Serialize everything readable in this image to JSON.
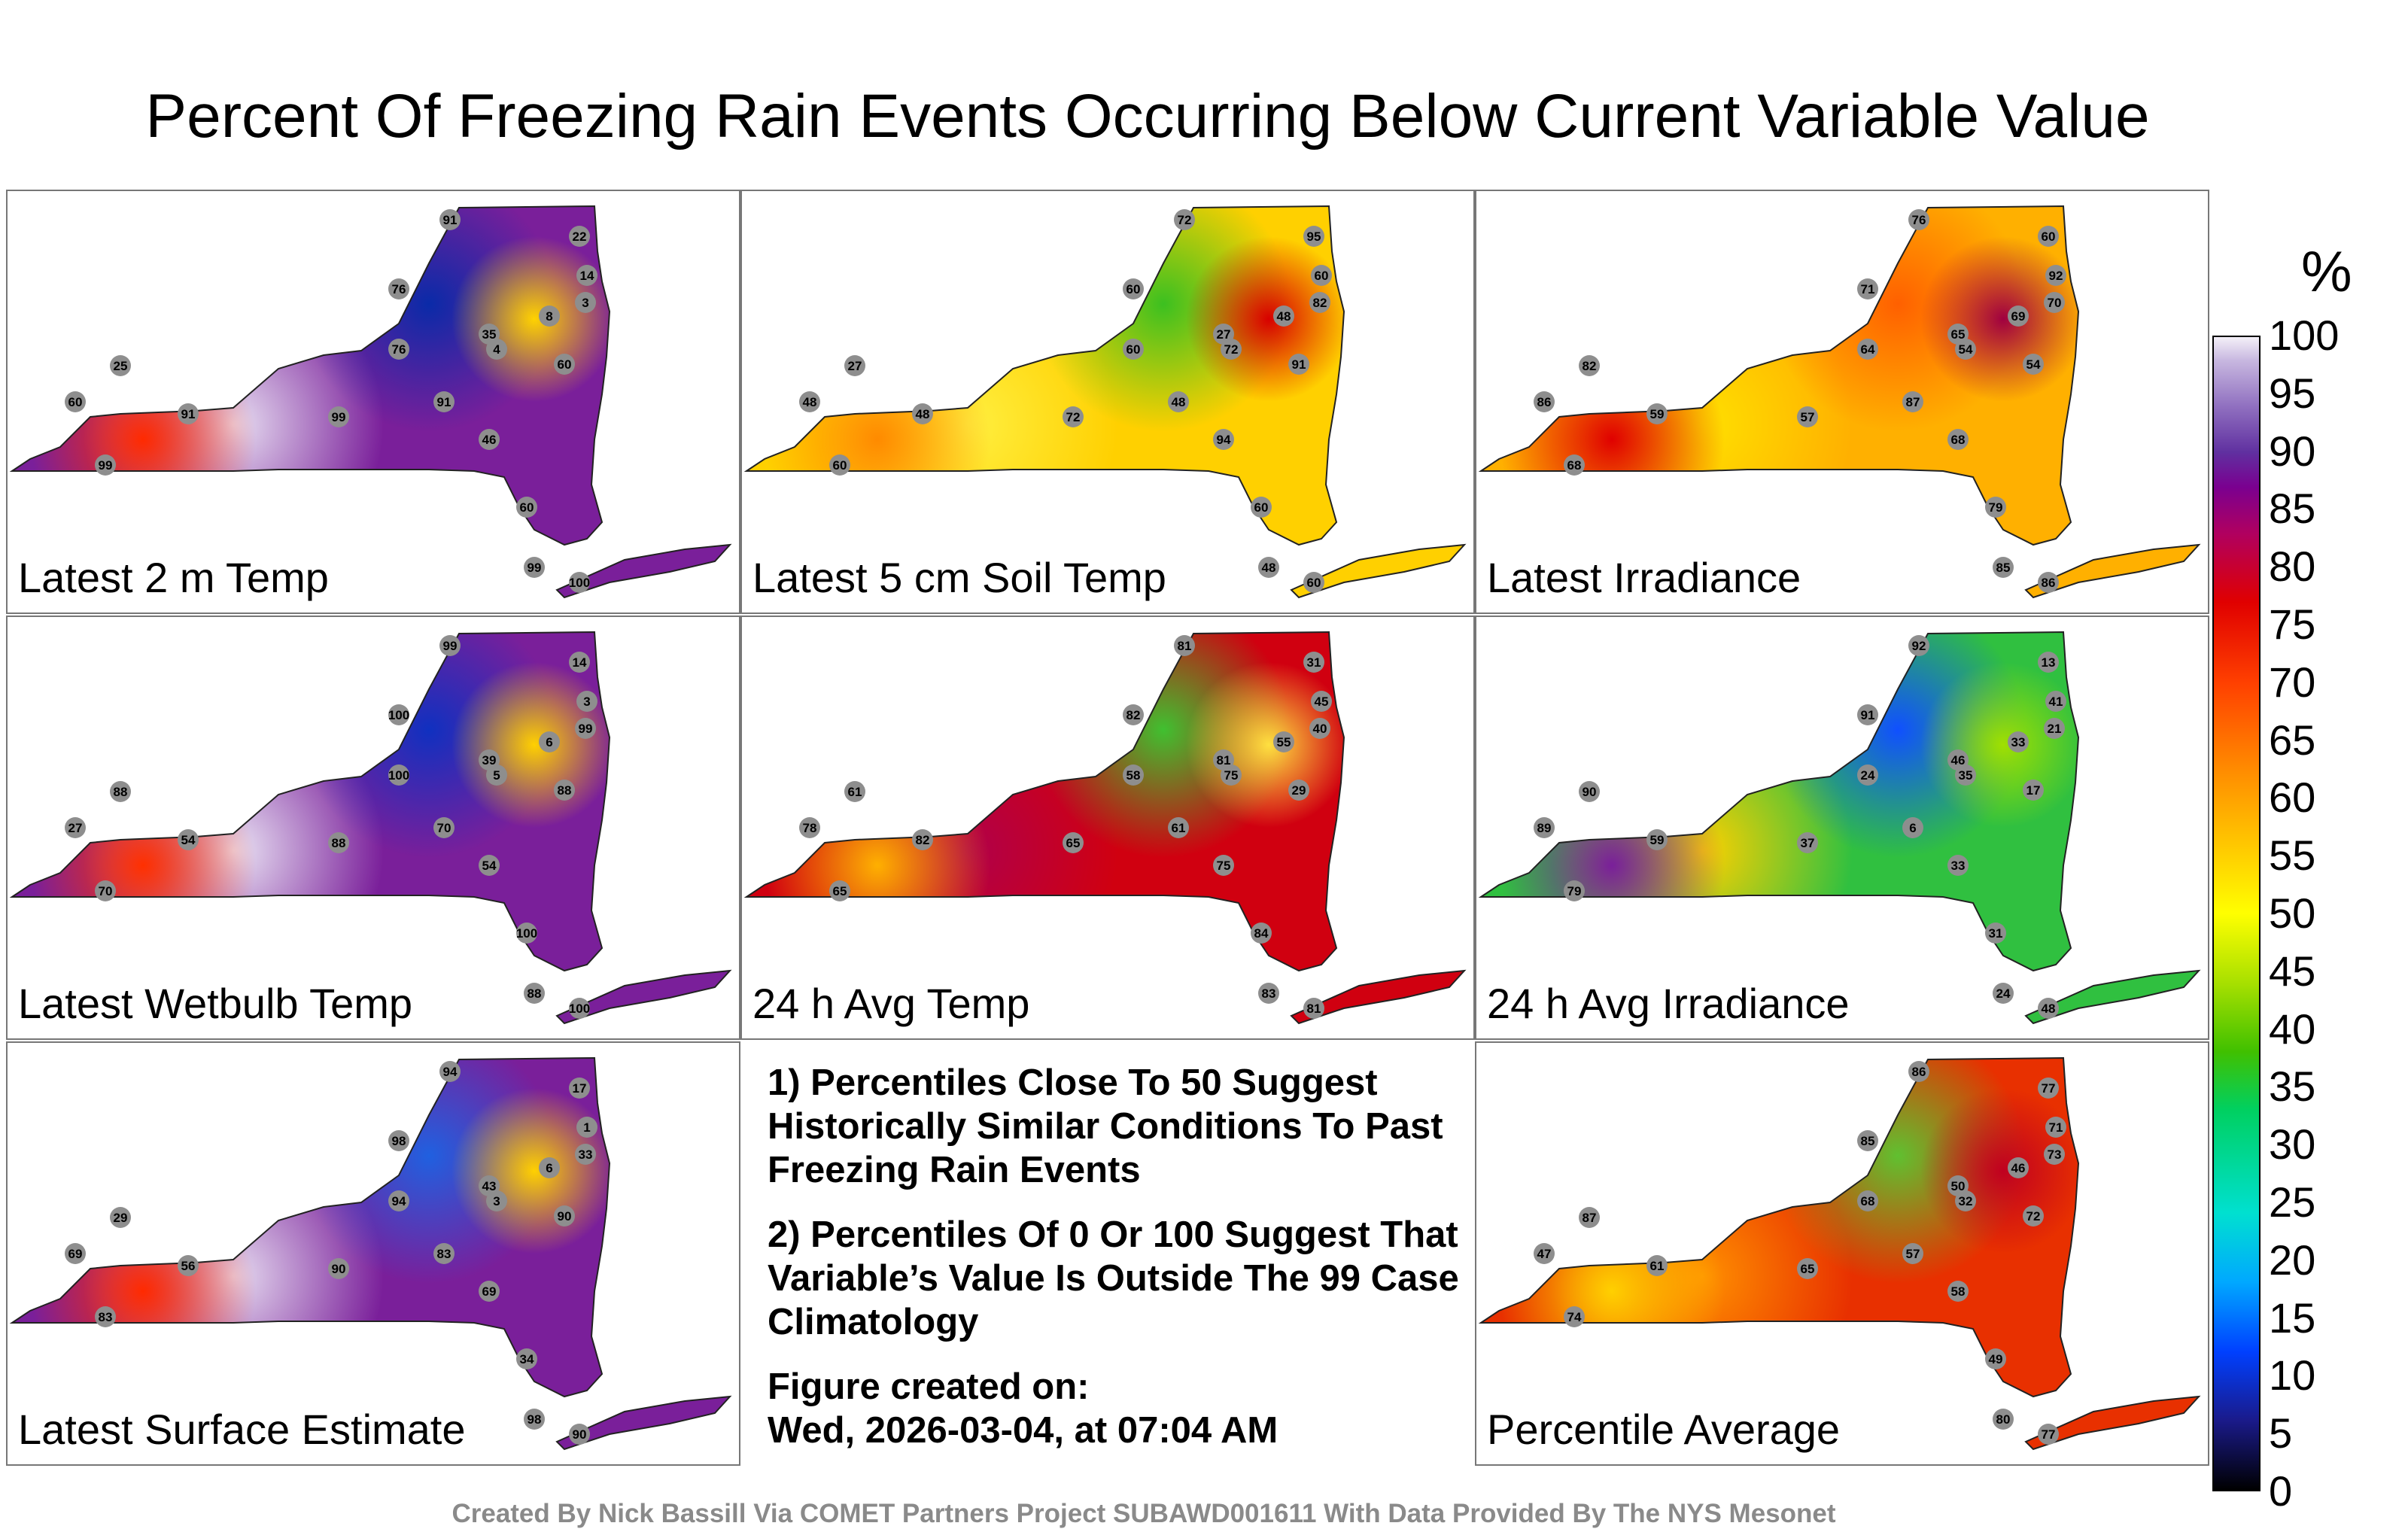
{
  "title": "Percent Of Freezing Rain Events Occurring Below Current Variable Value",
  "panels": [
    {
      "label": "Latest 2 m Temp",
      "colors": [
        "#7a1f9a",
        "#e8e0f2",
        "#ff2a00",
        "#0a2aa8",
        "#ffd200"
      ],
      "stations": [
        "91",
        "76",
        "25",
        "60",
        "99",
        "91",
        "35",
        "4",
        "8",
        "14",
        "60",
        "22",
        "3",
        "76",
        "99",
        "91",
        "46",
        "60",
        "99",
        "100"
      ]
    },
    {
      "label": "Latest 5 cm Soil Temp",
      "colors": [
        "#ffd000",
        "#ffef40",
        "#ff8a00",
        "#3cc020",
        "#d80000"
      ],
      "stations": [
        "72",
        "60",
        "27",
        "48",
        "60",
        "48",
        "27",
        "72",
        "48",
        "60",
        "91",
        "95",
        "82",
        "60",
        "72",
        "48",
        "94",
        "60",
        "48",
        "60"
      ]
    },
    {
      "label": "Latest Irradiance",
      "colors": [
        "#ffb000",
        "#ffe000",
        "#e00000",
        "#ff6000",
        "#a00040"
      ],
      "stations": [
        "76",
        "71",
        "82",
        "86",
        "68",
        "59",
        "65",
        "54",
        "69",
        "92",
        "54",
        "60",
        "70",
        "64",
        "57",
        "87",
        "68",
        "79",
        "85",
        "86"
      ]
    },
    {
      "label": "Latest Wetbulb Temp",
      "colors": [
        "#7a1f9a",
        "#eae4f4",
        "#ff3000",
        "#1030c0",
        "#ffd000"
      ],
      "stations": [
        "99",
        "100",
        "88",
        "27",
        "70",
        "54",
        "39",
        "5",
        "6",
        "3",
        "88",
        "14",
        "99",
        "100",
        "88",
        "70",
        "54",
        "100",
        "88",
        "100"
      ]
    },
    {
      "label": "24 h Avg Temp",
      "colors": [
        "#d00010",
        "#b0004a",
        "#ffb000",
        "#40c030",
        "#ffe040"
      ],
      "stations": [
        "81",
        "82",
        "61",
        "78",
        "65",
        "82",
        "81",
        "75",
        "55",
        "45",
        "29",
        "31",
        "40",
        "58",
        "65",
        "61",
        "75",
        "84",
        "83",
        "81"
      ]
    },
    {
      "label": "24 h Avg Irradiance",
      "colors": [
        "#30c040",
        "#ffd000",
        "#7a1f9a",
        "#1050ff",
        "#a0e000"
      ],
      "stations": [
        "92",
        "91",
        "90",
        "89",
        "79",
        "59",
        "46",
        "35",
        "33",
        "41",
        "17",
        "13",
        "21",
        "24",
        "37",
        "6",
        "33",
        "31",
        "24",
        "48"
      ]
    },
    {
      "label": "Latest Surface Estimate",
      "colors": [
        "#7a1f9a",
        "#e6dcf0",
        "#ff2a00",
        "#2060e0",
        "#ffd000"
      ],
      "stations": [
        "94",
        "98",
        "29",
        "69",
        "83",
        "56",
        "43",
        "3",
        "6",
        "1",
        "90",
        "17",
        "33",
        "94",
        "90",
        "83",
        "69",
        "34",
        "98",
        "90"
      ]
    },
    {
      "label": "Percentile Average",
      "colors": [
        "#e83000",
        "#ff9000",
        "#ffd000",
        "#60c030",
        "#c00020"
      ],
      "stations": [
        "86",
        "85",
        "87",
        "47",
        "74",
        "61",
        "50",
        "32",
        "46",
        "71",
        "72",
        "77",
        "73",
        "68",
        "65",
        "57",
        "58",
        "49",
        "80",
        "77"
      ]
    }
  ],
  "notes": [
    "1) Percentiles Close To 50 Suggest Historically Similar Conditions To Past Freezing Rain Events",
    "2) Percentiles Of 0 Or 100 Suggest That Variable’s Value Is Outside The 99 Case Climatology",
    "Figure created on:",
    "Wed, 2026-03-04, at 07:04 AM"
  ],
  "colorbar": {
    "unit": "%",
    "ticks": [
      "100",
      "95",
      "90",
      "85",
      "80",
      "75",
      "70",
      "65",
      "60",
      "55",
      "50",
      "45",
      "40",
      "35",
      "30",
      "25",
      "20",
      "15",
      "10",
      "5",
      "0"
    ]
  },
  "footer": "Created By Nick Bassill Via COMET Partners Project SUBAWD001611 With Data Provided By The NYS Mesonet"
}
